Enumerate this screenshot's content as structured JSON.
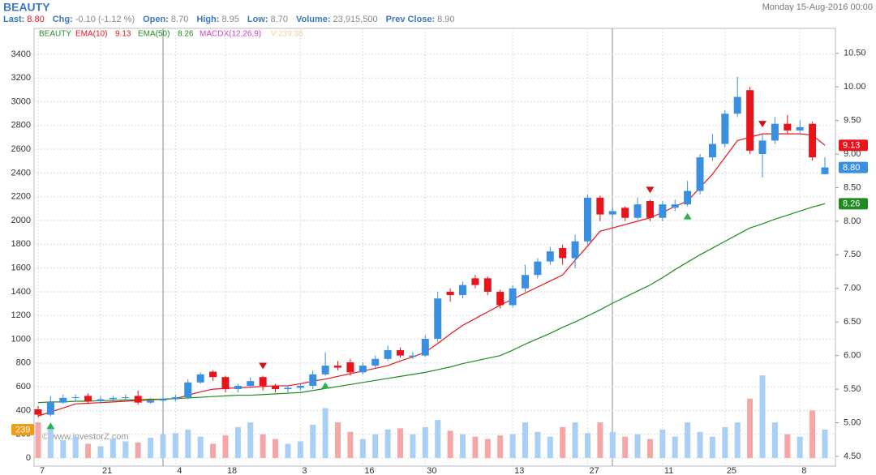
{
  "header": {
    "symbol": "BEAUTY",
    "date": "Monday 15-Aug-2016 00:00",
    "stats": [
      {
        "label": "Last:",
        "value": "8.80"
      },
      {
        "label": "Chg:",
        "value": "-0.10 (-1.12 %)"
      },
      {
        "label": "Open:",
        "value": "8.70"
      },
      {
        "label": "High:",
        "value": "8.95"
      },
      {
        "label": "Low:",
        "value": "8.70"
      },
      {
        "label": "Volume:",
        "value": "23,915,500"
      },
      {
        "label": "Prev Close:",
        "value": "8.90"
      }
    ]
  },
  "legend": {
    "symbol": "BEAUTY",
    "ema10": "EMA(10)",
    "ema10_value": "9.13",
    "ema50": "EMA(50)",
    "ema50_value": "8.26",
    "macd": "MACDX(12,26,9)",
    "volume": "V:239.36",
    "volume_badge": "239"
  },
  "watermark": "© www.investorZ.com",
  "chart_data": {
    "type": "candlestick",
    "categories": [
      "7",
      null,
      null,
      null,
      null,
      "21",
      null,
      null,
      null,
      null,
      null,
      "4",
      null,
      null,
      null,
      "18",
      null,
      null,
      null,
      null,
      null,
      "3",
      null,
      null,
      null,
      null,
      "16",
      null,
      null,
      null,
      null,
      "30",
      null,
      null,
      null,
      null,
      null,
      null,
      "13",
      null,
      null,
      null,
      null,
      null,
      "27",
      null,
      null,
      null,
      null,
      null,
      "11",
      null,
      null,
      null,
      null,
      "25",
      null,
      null,
      null,
      null,
      null,
      "8",
      null,
      null
    ],
    "open": [
      5.2,
      5.12,
      5.3,
      5.37,
      5.4,
      5.32,
      5.35,
      5.37,
      5.4,
      5.3,
      5.33,
      5.35,
      5.38,
      5.6,
      5.76,
      5.68,
      5.5,
      5.55,
      5.68,
      5.55,
      5.5,
      5.52,
      5.55,
      5.72,
      5.85,
      5.9,
      5.75,
      5.85,
      5.95,
      6.08,
      5.98,
      6.0,
      6.25,
      6.95,
      6.9,
      7.15,
      7.15,
      6.95,
      6.75,
      7.0,
      7.2,
      7.4,
      7.6,
      7.45,
      7.7,
      8.35,
      8.1,
      8.2,
      8.05,
      8.3,
      8.05,
      8.2,
      8.25,
      8.45,
      8.95,
      9.15,
      9.6,
      9.95,
      9.0,
      9.2,
      9.45,
      9.35,
      9.45,
      8.7
    ],
    "high": [
      5.25,
      5.4,
      5.42,
      5.42,
      5.44,
      5.4,
      5.4,
      5.42,
      5.48,
      5.37,
      5.38,
      5.42,
      5.65,
      5.75,
      5.78,
      5.7,
      5.58,
      5.68,
      5.7,
      5.58,
      5.56,
      5.58,
      5.78,
      6.05,
      5.92,
      5.95,
      5.9,
      6.0,
      6.15,
      6.12,
      6.05,
      6.3,
      6.95,
      7.0,
      7.1,
      7.2,
      7.18,
      6.98,
      7.05,
      7.35,
      7.45,
      7.62,
      7.65,
      7.8,
      8.4,
      8.38,
      8.2,
      8.22,
      8.35,
      8.32,
      8.3,
      8.32,
      8.6,
      9.0,
      9.3,
      9.65,
      10.15,
      10.0,
      9.3,
      9.55,
      9.58,
      9.5,
      9.48,
      8.95
    ],
    "low": [
      5.08,
      5.1,
      5.28,
      5.32,
      5.28,
      5.28,
      5.32,
      5.33,
      5.27,
      5.28,
      5.3,
      5.32,
      5.35,
      5.58,
      5.62,
      5.45,
      5.45,
      5.52,
      5.48,
      5.45,
      5.45,
      5.48,
      5.5,
      5.7,
      5.78,
      5.7,
      5.72,
      5.82,
      5.92,
      5.97,
      5.95,
      5.98,
      6.2,
      6.8,
      6.85,
      7.0,
      6.9,
      6.7,
      6.72,
      6.95,
      7.15,
      7.35,
      7.35,
      7.3,
      7.65,
      8.0,
      8.05,
      8.0,
      8.02,
      8.0,
      8.0,
      8.15,
      8.22,
      8.4,
      8.9,
      9.1,
      9.55,
      9.0,
      8.65,
      9.15,
      9.3,
      9.3,
      8.9,
      8.7
    ],
    "close": [
      5.12,
      5.3,
      5.37,
      5.38,
      5.32,
      5.35,
      5.37,
      5.38,
      5.3,
      5.33,
      5.35,
      5.38,
      5.6,
      5.72,
      5.68,
      5.5,
      5.55,
      5.62,
      5.55,
      5.5,
      5.52,
      5.55,
      5.72,
      5.85,
      5.82,
      5.75,
      5.85,
      5.95,
      6.08,
      6.0,
      6.0,
      6.25,
      6.85,
      6.9,
      7.05,
      7.05,
      6.95,
      6.75,
      7.0,
      7.2,
      7.4,
      7.55,
      7.45,
      7.7,
      8.35,
      8.1,
      8.15,
      8.05,
      8.25,
      8.05,
      8.25,
      8.25,
      8.45,
      8.95,
      9.15,
      9.6,
      9.85,
      9.05,
      9.2,
      9.45,
      9.35,
      9.4,
      8.95,
      8.8
    ],
    "series": [
      {
        "name": "EMA(10)",
        "color": "#e8141c",
        "values": [
          5.1,
          5.16,
          5.22,
          5.28,
          5.29,
          5.3,
          5.31,
          5.32,
          5.33,
          5.34,
          5.35,
          5.36,
          5.41,
          5.46,
          5.5,
          5.51,
          5.52,
          5.53,
          5.54,
          5.55,
          5.55,
          5.58,
          5.62,
          5.65,
          5.69,
          5.73,
          5.77,
          5.81,
          5.85,
          5.92,
          5.98,
          6.05,
          6.18,
          6.32,
          6.45,
          6.55,
          6.65,
          6.75,
          6.84,
          6.93,
          7.02,
          7.11,
          7.2,
          7.42,
          7.63,
          7.85,
          7.9,
          7.95,
          8.0,
          8.05,
          8.13,
          8.22,
          8.3,
          8.5,
          8.7,
          8.95,
          9.2,
          9.25,
          9.3,
          9.3,
          9.3,
          9.3,
          9.28,
          9.13
        ]
      },
      {
        "name": "EMA(50)",
        "color": "#1f8a1f",
        "values": [
          5.3,
          5.31,
          5.31,
          5.32,
          5.32,
          5.33,
          5.33,
          5.34,
          5.34,
          5.35,
          5.35,
          5.36,
          5.37,
          5.38,
          5.39,
          5.4,
          5.41,
          5.41,
          5.42,
          5.43,
          5.44,
          5.45,
          5.48,
          5.51,
          5.54,
          5.57,
          5.6,
          5.63,
          5.66,
          5.69,
          5.72,
          5.75,
          5.79,
          5.83,
          5.88,
          5.92,
          5.96,
          6.0,
          6.08,
          6.17,
          6.25,
          6.33,
          6.42,
          6.5,
          6.59,
          6.68,
          6.78,
          6.87,
          6.96,
          7.05,
          7.16,
          7.28,
          7.39,
          7.5,
          7.6,
          7.7,
          7.8,
          7.9,
          7.96,
          8.03,
          8.09,
          8.15,
          8.21,
          8.26
        ]
      }
    ],
    "volume": [
      300,
      250,
      150,
      180,
      120,
      100,
      160,
      140,
      130,
      170,
      200,
      210,
      240,
      180,
      120,
      190,
      260,
      300,
      200,
      160,
      120,
      140,
      280,
      420,
      300,
      220,
      160,
      200,
      240,
      250,
      200,
      260,
      320,
      230,
      200,
      180,
      160,
      190,
      200,
      300,
      220,
      180,
      260,
      300,
      210,
      300,
      220,
      180,
      200,
      160,
      240,
      180,
      300,
      220,
      180,
      260,
      300,
      500,
      696,
      300,
      200,
      180,
      400,
      239
    ],
    "buy_signals": [
      1,
      23,
      52
    ],
    "sell_signals": [
      18,
      49,
      58
    ],
    "up_color": "#3b8fe0",
    "down_color": "#e8141c",
    "up_volume_color": "#a9cff5",
    "down_volume_color": "#f5a6a6",
    "ylim": [
      4.355,
      10.87
    ],
    "yticks": [
      {
        "value": 4.5,
        "label": "4.50"
      },
      {
        "value": 5.0,
        "label": "5.00"
      },
      {
        "value": 5.5,
        "label": "5.50"
      },
      {
        "value": 6.0,
        "label": "6.00"
      },
      {
        "value": 6.5,
        "label": "6.50"
      },
      {
        "value": 7.0,
        "label": "7.00"
      },
      {
        "value": 7.5,
        "label": "7.50"
      },
      {
        "value": 8.0,
        "label": "8.00"
      },
      {
        "value": 8.5,
        "label": "8.50"
      },
      {
        "value": 9.0,
        "label": "9.00"
      },
      {
        "value": 9.5,
        "label": "9.50"
      },
      {
        "value": 10.0,
        "label": "10.00"
      },
      {
        "value": 10.5,
        "label": "10.50"
      }
    ],
    "y2lim": [
      -68,
      3618
    ],
    "y2ticks": [
      0,
      200,
      400,
      600,
      800,
      1000,
      1200,
      1400,
      1600,
      1800,
      2000,
      2200,
      2400,
      2600,
      2800,
      3000,
      3200,
      3400
    ],
    "grid": true
  }
}
